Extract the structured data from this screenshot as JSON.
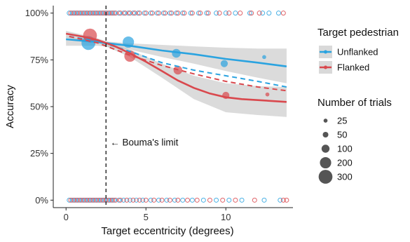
{
  "chart_data": {
    "type": "scatter",
    "xlabel": "Target eccentricity (degrees)",
    "ylabel": "Accuracy",
    "xlim": [
      -0.8,
      14.2
    ],
    "ylim": [
      -0.04,
      1.04
    ],
    "x_ticks": [
      0,
      5,
      10
    ],
    "y_ticks": [
      0,
      0.25,
      0.5,
      0.75,
      1.0
    ],
    "y_tick_labels": [
      "0%",
      "25%",
      "50%",
      "75%",
      "100%"
    ],
    "grid": false,
    "legend_placement": "right",
    "annotation": {
      "text": "← Bouma's limit",
      "x": 2.5,
      "y": 0.3
    },
    "reference_line": {
      "x": 2.5,
      "style": "dashed"
    },
    "legend_color": {
      "title": "Target pedestrian",
      "entries": [
        {
          "label": "Unflanked",
          "color": "#2AA3E0"
        },
        {
          "label": "Flanked",
          "color": "#D9484D"
        }
      ]
    },
    "legend_size": {
      "title": "Number of trials",
      "entries": [
        {
          "label": "25",
          "value": 25
        },
        {
          "label": "50",
          "value": 50
        },
        {
          "label": "100",
          "value": 100
        },
        {
          "label": "200",
          "value": 200
        },
        {
          "label": "300",
          "value": 300
        }
      ]
    },
    "series": [
      {
        "name": "Unflanked",
        "color": "#2AA3E0",
        "binned_points": [
          {
            "x": 1.4,
            "y": 0.84,
            "n": 300
          },
          {
            "x": 3.9,
            "y": 0.845,
            "n": 200
          },
          {
            "x": 6.9,
            "y": 0.785,
            "n": 120
          },
          {
            "x": 9.9,
            "y": 0.73,
            "n": 80
          },
          {
            "x": 12.4,
            "y": 0.765,
            "n": 25
          }
        ],
        "fit_solid": [
          [
            0,
            0.86
          ],
          [
            2,
            0.845
          ],
          [
            4,
            0.825
          ],
          [
            6,
            0.8
          ],
          [
            8,
            0.78
          ],
          [
            10,
            0.755
          ],
          [
            12,
            0.735
          ],
          [
            13.8,
            0.715
          ]
        ],
        "ci_upper": [
          [
            0,
            0.875
          ],
          [
            2,
            0.852
          ],
          [
            4,
            0.838
          ],
          [
            6,
            0.83
          ],
          [
            8,
            0.822
          ],
          [
            10,
            0.815
          ],
          [
            12,
            0.81
          ],
          [
            13.8,
            0.81
          ]
        ],
        "ci_lower": [
          [
            0,
            0.825
          ],
          [
            2,
            0.825
          ],
          [
            4,
            0.805
          ],
          [
            6,
            0.765
          ],
          [
            8,
            0.73
          ],
          [
            10,
            0.69
          ],
          [
            12,
            0.655
          ],
          [
            13.8,
            0.625
          ]
        ],
        "fit_dashed": [
          [
            0.2,
            0.875
          ],
          [
            2,
            0.85
          ],
          [
            4,
            0.795
          ],
          [
            6,
            0.735
          ],
          [
            8,
            0.695
          ],
          [
            10,
            0.665
          ],
          [
            12,
            0.635
          ],
          [
            13.8,
            0.605
          ]
        ],
        "raw_top_x": [
          0.2,
          0.4,
          0.6,
          0.8,
          1.0,
          1.2,
          1.4,
          1.6,
          1.8,
          2.0,
          2.2,
          2.4,
          2.6,
          2.8,
          3.0,
          3.3,
          3.6,
          3.9,
          4.2,
          4.5,
          4.9,
          5.3,
          5.7,
          6.1,
          6.5,
          6.9,
          7.3,
          7.8,
          8.3,
          8.8,
          9.4,
          10.0,
          10.6,
          11.5,
          12.3,
          12.7,
          13.3
        ],
        "raw_bottom_x": [
          0.2,
          0.4,
          0.6,
          0.8,
          1.0,
          1.2,
          1.4,
          1.6,
          1.8,
          2.0,
          2.2,
          2.4,
          2.6,
          2.8,
          3.0,
          3.3,
          3.6,
          4.0,
          4.4,
          4.8,
          5.3,
          5.8,
          6.3,
          6.8,
          7.3,
          7.9,
          8.6,
          9.4,
          10.2,
          11.0,
          12.4,
          13.4
        ]
      },
      {
        "name": "Flanked",
        "color": "#D9484D",
        "binned_points": [
          {
            "x": 1.5,
            "y": 0.88,
            "n": 300
          },
          {
            "x": 4.0,
            "y": 0.77,
            "n": 200
          },
          {
            "x": 7.0,
            "y": 0.695,
            "n": 120
          },
          {
            "x": 10.0,
            "y": 0.56,
            "n": 80
          },
          {
            "x": 12.6,
            "y": 0.565,
            "n": 25
          }
        ],
        "fit_solid": [
          [
            0,
            0.89
          ],
          [
            1,
            0.875
          ],
          [
            2,
            0.855
          ],
          [
            3,
            0.825
          ],
          [
            4,
            0.785
          ],
          [
            5,
            0.74
          ],
          [
            6,
            0.69
          ],
          [
            7,
            0.64
          ],
          [
            8,
            0.6
          ],
          [
            9,
            0.57
          ],
          [
            10,
            0.55
          ],
          [
            11,
            0.54
          ],
          [
            12,
            0.535
          ],
          [
            13.8,
            0.525
          ]
        ],
        "ci_upper": [
          [
            0,
            0.905
          ],
          [
            2,
            0.865
          ],
          [
            4,
            0.805
          ],
          [
            6,
            0.73
          ],
          [
            8,
            0.665
          ],
          [
            10,
            0.625
          ],
          [
            12,
            0.61
          ],
          [
            13.8,
            0.605
          ]
        ],
        "ci_lower": [
          [
            0,
            0.87
          ],
          [
            2,
            0.84
          ],
          [
            4,
            0.765
          ],
          [
            6,
            0.655
          ],
          [
            8,
            0.54
          ],
          [
            10,
            0.47
          ],
          [
            12,
            0.455
          ],
          [
            13.8,
            0.445
          ]
        ],
        "fit_dashed": [
          [
            0.2,
            0.875
          ],
          [
            2,
            0.84
          ],
          [
            4,
            0.775
          ],
          [
            6,
            0.72
          ],
          [
            8,
            0.675
          ],
          [
            10,
            0.635
          ],
          [
            12,
            0.605
          ],
          [
            13.8,
            0.585
          ]
        ],
        "raw_top_x": [
          0.3,
          0.5,
          0.7,
          0.9,
          1.1,
          1.3,
          1.5,
          1.7,
          1.9,
          2.1,
          2.3,
          2.5,
          2.7,
          2.9,
          3.1,
          3.4,
          3.7,
          4.0,
          4.3,
          4.6,
          5.0,
          5.4,
          5.8,
          6.2,
          6.6,
          7.0,
          7.4,
          7.9,
          8.4,
          8.9,
          9.6,
          10.2,
          10.9,
          11.6,
          12.1,
          13.6
        ],
        "raw_bottom_x": [
          0.3,
          0.5,
          0.7,
          0.9,
          1.1,
          1.3,
          1.5,
          1.7,
          1.9,
          2.1,
          2.3,
          2.5,
          2.7,
          2.9,
          3.1,
          3.4,
          3.8,
          4.2,
          4.6,
          5.0,
          5.5,
          6.0,
          6.5,
          7.0,
          7.6,
          8.2,
          9.0,
          9.8,
          10.6,
          11.8,
          13.6,
          13.8
        ]
      }
    ]
  }
}
